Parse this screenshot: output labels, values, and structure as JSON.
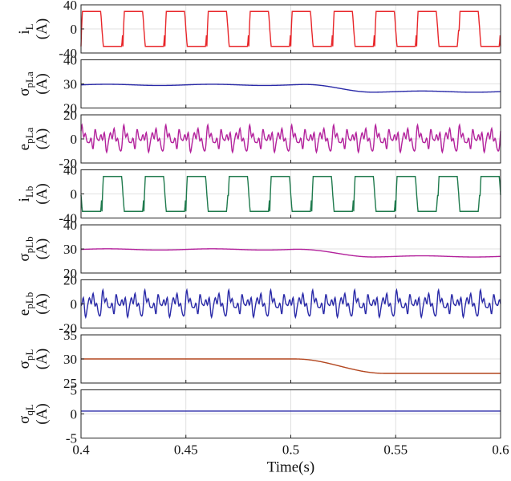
{
  "chart_data": {
    "type": "line",
    "xlabel": "Time(s)",
    "xlim": [
      0.4,
      0.6
    ],
    "xticks": [
      "0.4",
      "0.45",
      "0.5",
      "0.55",
      "0.6"
    ],
    "grid": true,
    "panels": [
      {
        "ylabel_main": "i",
        "ylabel_sub": "L",
        "ylabel_unit": "(A)",
        "ylim": [
          -40,
          40
        ],
        "yticks": [
          "40",
          "0",
          "-40"
        ],
        "series": [
          {
            "color": "#e8262a",
            "kind": "trapezoid",
            "amplitude": 29,
            "frequency_hz": 50,
            "phase": 0
          }
        ]
      },
      {
        "ylabel_main": "σ",
        "ylabel_sub": "pLa",
        "ylabel_unit": "(A)",
        "ylim": [
          20,
          40
        ],
        "yticks": [
          "40",
          "30",
          "20"
        ],
        "series": [
          {
            "color": "#2a2aa8",
            "kind": "step",
            "before": 29.6,
            "after": 26.8,
            "t_start": 0.505,
            "t_end": 0.54,
            "ripple": 0.25
          }
        ]
      },
      {
        "ylabel_main": "e",
        "ylabel_sub": "pLa",
        "ylabel_unit": "(A)",
        "ylim": [
          -20,
          20
        ],
        "yticks": [
          "20",
          "0",
          "-20"
        ],
        "series": [
          {
            "color": "#b3229c",
            "kind": "ripple",
            "amplitude": 13,
            "frequency_hz": 50,
            "phase": 0
          }
        ]
      },
      {
        "ylabel_main": "i",
        "ylabel_sub": "Lb",
        "ylabel_unit": "(A)",
        "ylim": [
          -40,
          40
        ],
        "yticks": [
          "40",
          "0",
          "-40"
        ],
        "series": [
          {
            "color": "#1f7a4d",
            "kind": "trapezoid",
            "amplitude": 29,
            "frequency_hz": 50,
            "phase": 0.5
          }
        ]
      },
      {
        "ylabel_main": "σ",
        "ylabel_sub": "pLb",
        "ylabel_unit": "(A)",
        "ylim": [
          20,
          40
        ],
        "yticks": [
          "40",
          "30",
          "20"
        ],
        "series": [
          {
            "color": "#b3229c",
            "kind": "step",
            "before": 29.8,
            "after": 26.9,
            "t_start": 0.5,
            "t_end": 0.54,
            "ripple": 0.25
          }
        ]
      },
      {
        "ylabel_main": "e",
        "ylabel_sub": "pLb",
        "ylabel_unit": "(A)",
        "ylim": [
          -20,
          20
        ],
        "yticks": [
          "20",
          "0",
          "-20"
        ],
        "series": [
          {
            "color": "#2a2aa8",
            "kind": "ripple",
            "amplitude": 13,
            "frequency_hz": 50,
            "phase": 0.5
          }
        ]
      },
      {
        "ylabel_main": "σ",
        "ylabel_sub": "pL",
        "ylabel_unit": "(A)",
        "ylim": [
          25,
          35
        ],
        "yticks": [
          "35",
          "30",
          "25"
        ],
        "series": [
          {
            "color": "#b3461f",
            "kind": "step",
            "before": 30,
            "after": 27,
            "t_start": 0.502,
            "t_end": 0.545,
            "ripple": 0
          }
        ]
      },
      {
        "ylabel_main": "σ",
        "ylabel_sub": "qL",
        "ylabel_unit": "(A)",
        "ylim": [
          -5,
          5
        ],
        "yticks": [
          "5",
          "0",
          "-5"
        ],
        "series": [
          {
            "color": "#2a2aa8",
            "kind": "const",
            "value": 0.6
          }
        ]
      }
    ]
  }
}
